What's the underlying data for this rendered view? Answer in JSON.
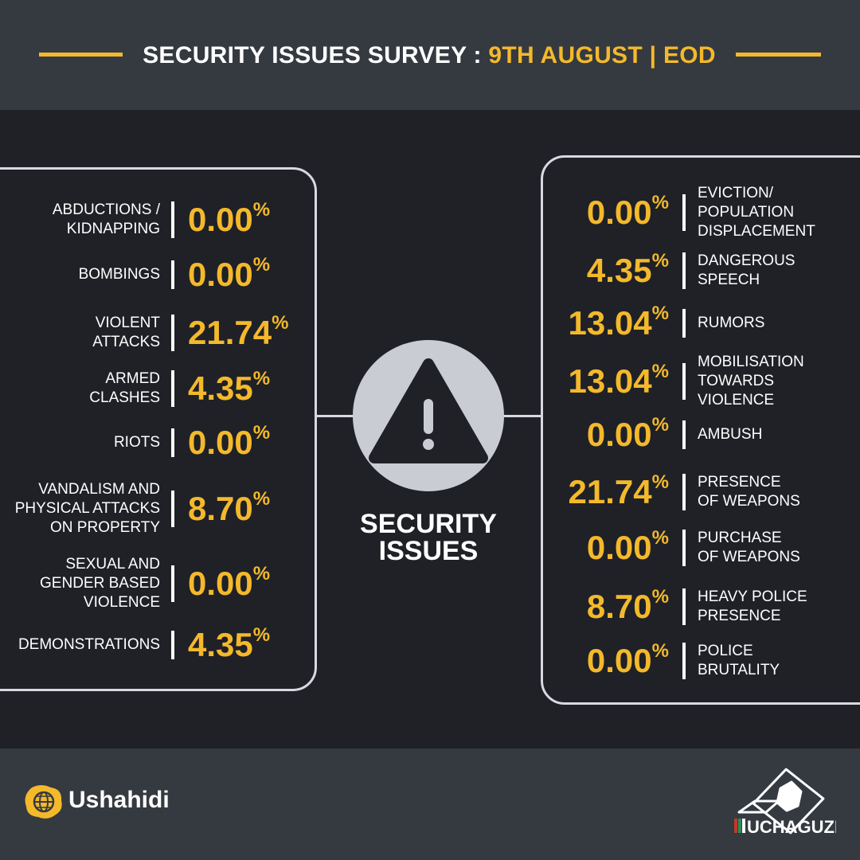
{
  "header": {
    "title_white": "SECURITY ISSUES SURVEY : ",
    "title_gold": "9TH AUGUST | EOD"
  },
  "center": {
    "icon": "warning-icon",
    "label_line1": "SECURITY",
    "label_line2": "ISSUES"
  },
  "left_items": [
    {
      "label": [
        "ABDUCTIONS /",
        "KIDNAPPING"
      ],
      "value": "0.00",
      "unit": "%"
    },
    {
      "label": [
        "BOMBINGS"
      ],
      "value": "0.00",
      "unit": "%"
    },
    {
      "label": [
        "VIOLENT",
        "ATTACKS"
      ],
      "value": "21.74",
      "unit": "%"
    },
    {
      "label": [
        "ARMED",
        "CLASHES"
      ],
      "value": "4.35",
      "unit": "%"
    },
    {
      "label": [
        "RIOTS"
      ],
      "value": "0.00",
      "unit": "%"
    },
    {
      "label": [
        "VANDALISM AND",
        "PHYSICAL ATTACKS",
        "ON PROPERTY"
      ],
      "value": "8.70",
      "unit": "%"
    },
    {
      "label": [
        "SEXUAL AND",
        "GENDER BASED",
        "VIOLENCE"
      ],
      "value": "0.00",
      "unit": "%"
    },
    {
      "label": [
        "DEMONSTRATIONS"
      ],
      "value": "4.35",
      "unit": "%"
    }
  ],
  "right_items": [
    {
      "label": [
        "EVICTION/",
        "POPULATION",
        "DISPLACEMENT"
      ],
      "value": "0.00",
      "unit": "%"
    },
    {
      "label": [
        "DANGEROUS",
        "SPEECH"
      ],
      "value": "4.35",
      "unit": "%"
    },
    {
      "label": [
        "RUMORS"
      ],
      "value": "13.04",
      "unit": "%"
    },
    {
      "label": [
        "MOBILISATION",
        "TOWARDS",
        "VIOLENCE"
      ],
      "value": "13.04",
      "unit": "%"
    },
    {
      "label": [
        "AMBUSH"
      ],
      "value": "0.00",
      "unit": "%"
    },
    {
      "label": [
        "PRESENCE",
        "OF WEAPONS"
      ],
      "value": "21.74",
      "unit": "%"
    },
    {
      "label": [
        "PURCHASE",
        "OF WEAPONS"
      ],
      "value": "0.00",
      "unit": "%"
    },
    {
      "label": [
        "HEAVY POLICE",
        "PRESENCE"
      ],
      "value": "8.70",
      "unit": "%"
    },
    {
      "label": [
        "POLICE",
        "BRUTALITY"
      ],
      "value": "0.00",
      "unit": "%"
    }
  ],
  "footer": {
    "ushahidi_icon": "ushahidi-globe-icon",
    "ushahidi_name": "Ushahidi",
    "uchaguzi_logo": "uchaguzi-ballot-icon",
    "uchaguzi_name": "UCHAGUZI"
  },
  "colors": {
    "accent": "#f4b92b",
    "background": "#1f2127",
    "band": "#353a41",
    "outline": "#d6dae0"
  }
}
